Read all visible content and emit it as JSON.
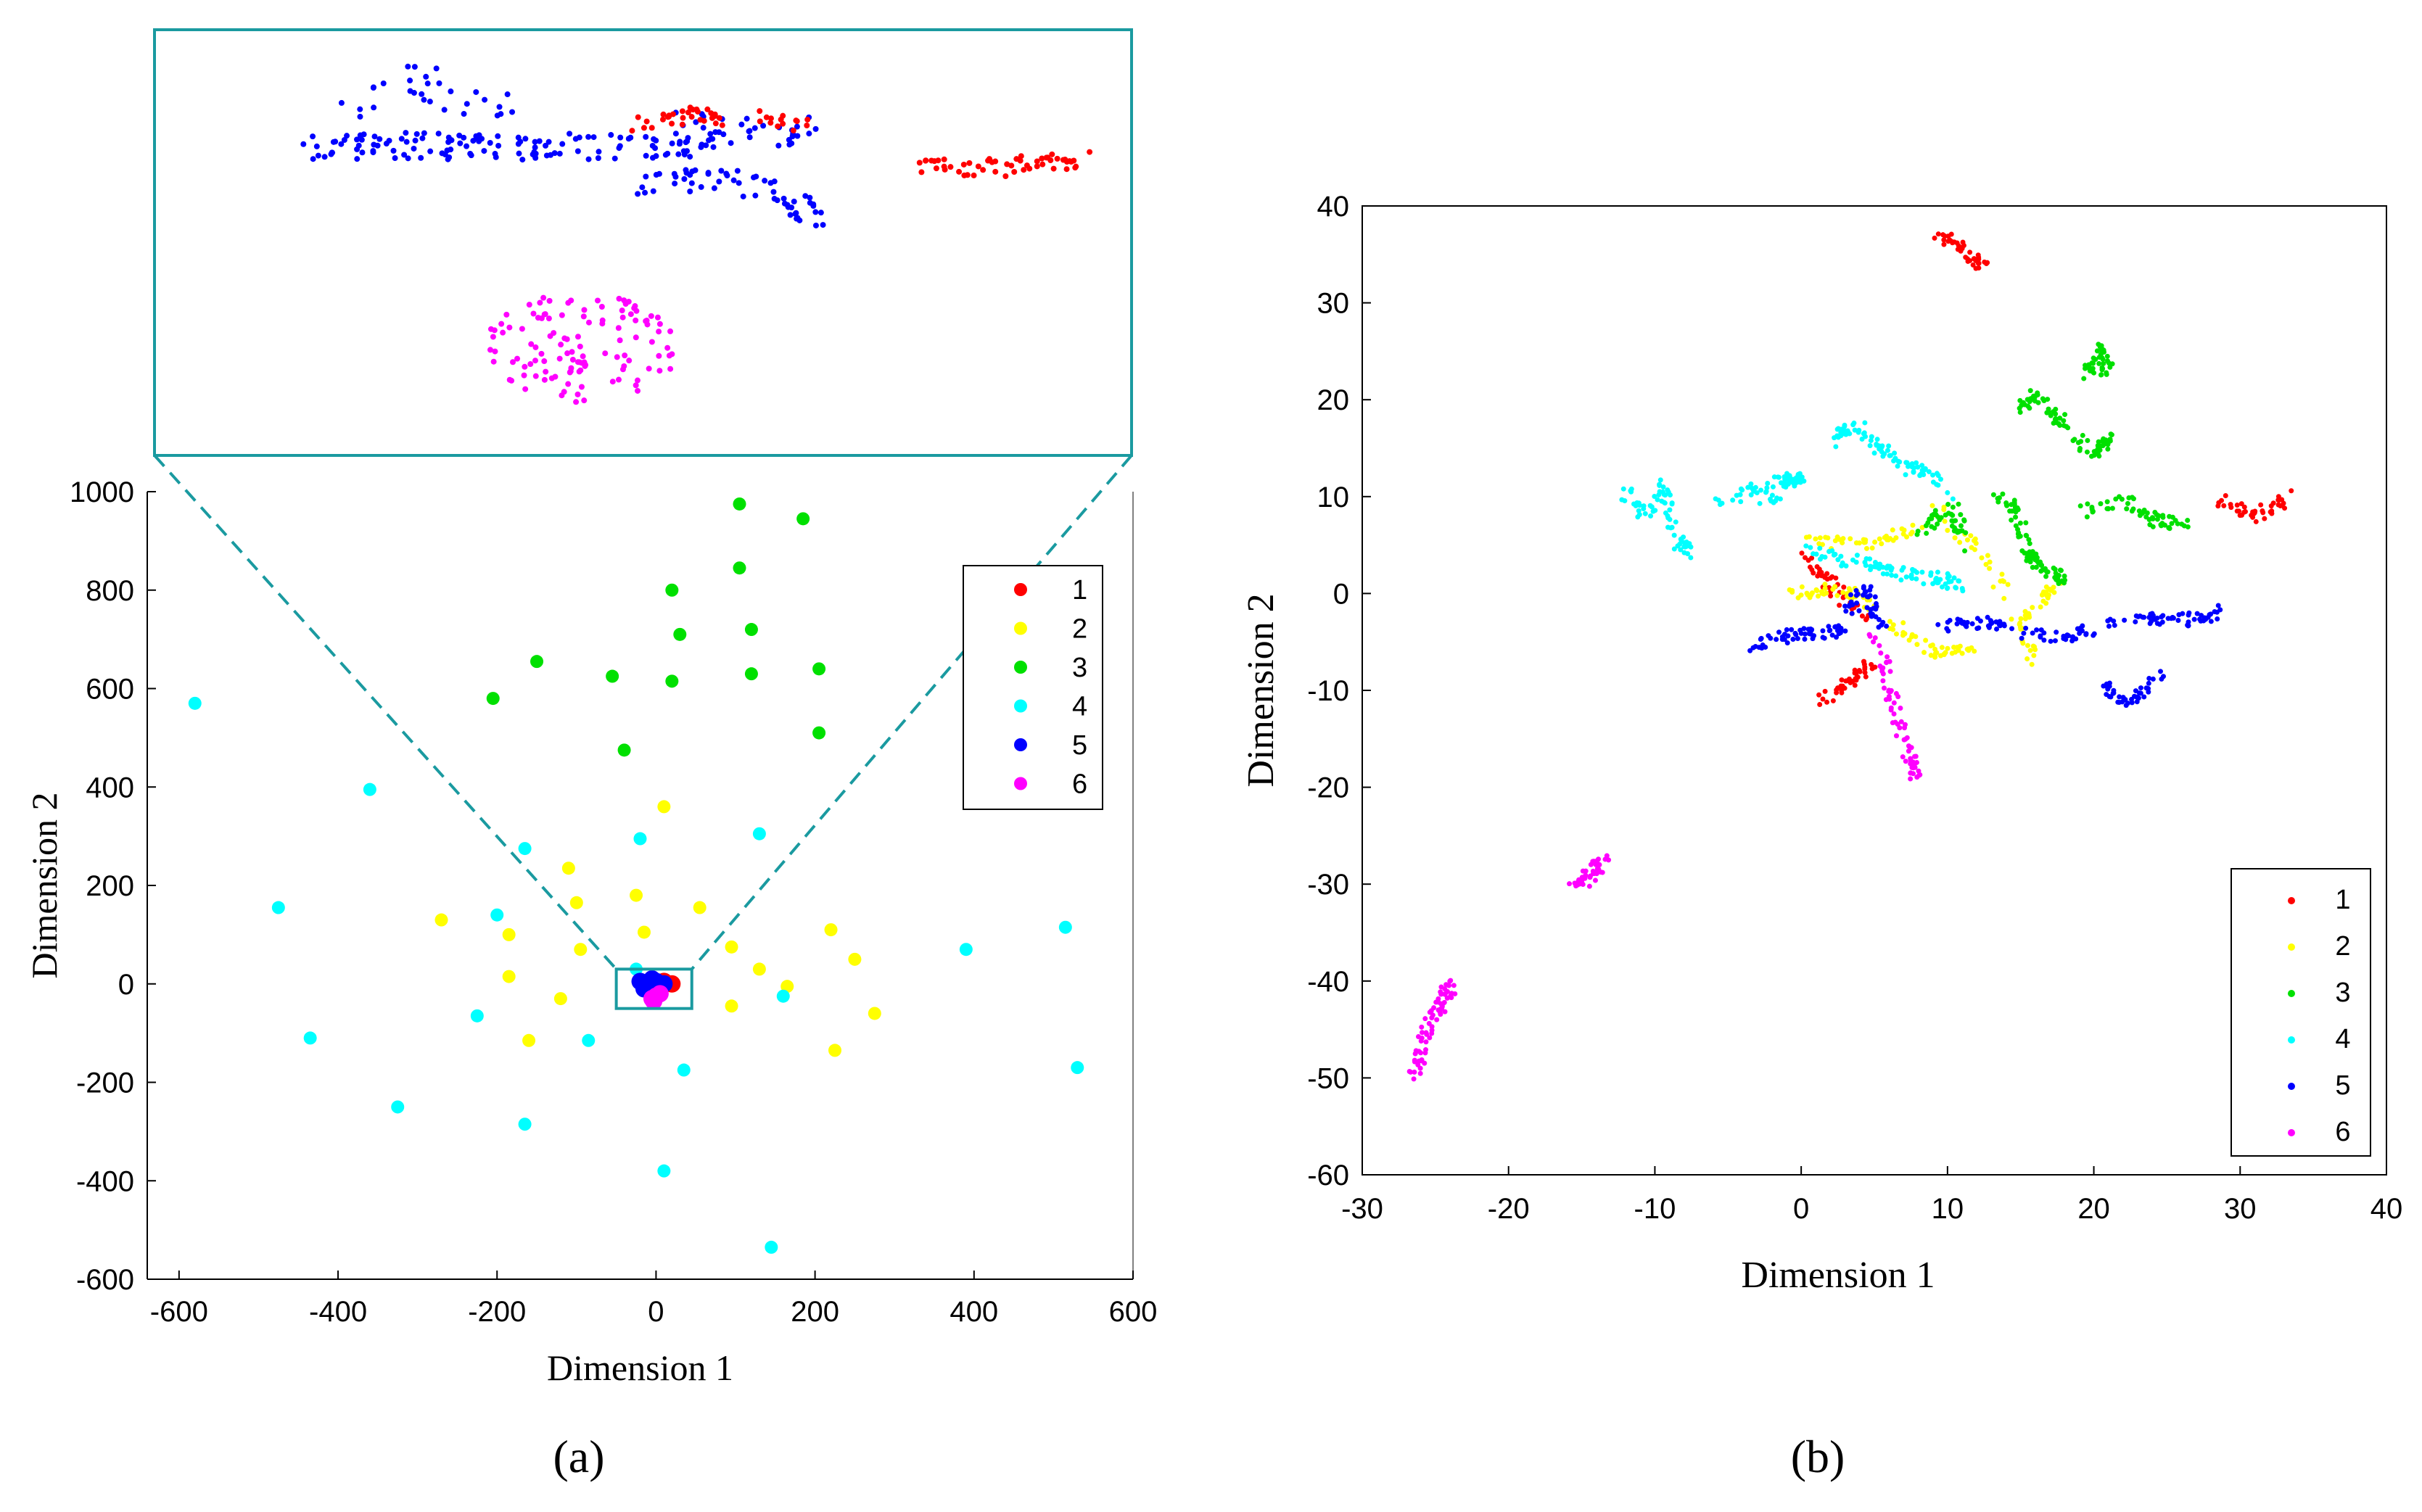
{
  "figure": {
    "panel_a_label": "(a)",
    "panel_b_label": "(b)"
  },
  "colors": {
    "1": "#ff0000",
    "2": "#ffff00",
    "3": "#00e000",
    "4": "#00ffff",
    "5": "#0000ff",
    "6": "#ff00ff",
    "inset_frame": "#1a9aa0"
  },
  "chart_data": [
    {
      "id": "a",
      "type": "scatter",
      "title": "",
      "xlabel": "Dimension 1",
      "ylabel": "Dimension 2",
      "xlim": [
        -640,
        600
      ],
      "ylim": [
        -600,
        1000
      ],
      "xticks": [
        -600,
        -400,
        -200,
        0,
        200,
        400,
        600
      ],
      "xtick_labels": [
        "-600",
        "-400",
        "-200",
        "0",
        "200",
        "400",
        "600"
      ],
      "yticks": [
        -600,
        -400,
        -200,
        0,
        200,
        400,
        600,
        800,
        1000
      ],
      "ytick_labels": [
        "-600",
        "-400",
        "-200",
        "0",
        "200",
        "400",
        "600",
        "800",
        "1000"
      ],
      "grid": false,
      "legend_position": "top-right",
      "legend": [
        "1",
        "2",
        "3",
        "4",
        "5",
        "6"
      ],
      "zoom_box": {
        "x": [
          -50,
          45
        ],
        "y": [
          -50,
          30
        ]
      },
      "series": [
        {
          "name": "1",
          "points": [
            [
              20,
              0
            ],
            [
              5,
              -5
            ],
            [
              10,
              5
            ]
          ]
        },
        {
          "name": "2",
          "points": [
            [
              10,
              360
            ],
            [
              -25,
              180
            ],
            [
              -110,
              235
            ],
            [
              -100,
              165
            ],
            [
              -185,
              100
            ],
            [
              -95,
              70
            ],
            [
              -270,
              130
            ],
            [
              -185,
              15
            ],
            [
              -120,
              -30
            ],
            [
              -160,
              -115
            ],
            [
              -15,
              105
            ],
            [
              55,
              155
            ],
            [
              95,
              75
            ],
            [
              130,
              30
            ],
            [
              165,
              -5
            ],
            [
              220,
              110
            ],
            [
              250,
              50
            ],
            [
              275,
              -60
            ],
            [
              95,
              -45
            ],
            [
              225,
              -135
            ]
          ]
        },
        {
          "name": "3",
          "points": [
            [
              105,
              975
            ],
            [
              185,
              945
            ],
            [
              105,
              845
            ],
            [
              20,
              800
            ],
            [
              30,
              710
            ],
            [
              120,
              720
            ],
            [
              -150,
              655
            ],
            [
              -55,
              625
            ],
            [
              20,
              615
            ],
            [
              120,
              630
            ],
            [
              205,
              640
            ],
            [
              -205,
              580
            ],
            [
              205,
              510
            ],
            [
              -40,
              475
            ]
          ]
        },
        {
          "name": "4",
          "points": [
            [
              -580,
              570
            ],
            [
              -475,
              155
            ],
            [
              -360,
              395
            ],
            [
              -435,
              -110
            ],
            [
              -325,
              -250
            ],
            [
              -165,
              275
            ],
            [
              -200,
              140
            ],
            [
              -225,
              -65
            ],
            [
              -165,
              -285
            ],
            [
              -85,
              -115
            ],
            [
              -20,
              295
            ],
            [
              -25,
              30
            ],
            [
              35,
              -175
            ],
            [
              10,
              -380
            ],
            [
              130,
              305
            ],
            [
              160,
              -25
            ],
            [
              145,
              -535
            ],
            [
              390,
              70
            ],
            [
              515,
              115
            ],
            [
              530,
              -170
            ]
          ]
        },
        {
          "name": "5",
          "points": [
            [
              -20,
              5
            ],
            [
              -5,
              10
            ],
            [
              5,
              -5
            ],
            [
              -15,
              -10
            ],
            [
              10,
              0
            ],
            [
              0,
              5
            ],
            [
              -10,
              0
            ]
          ]
        },
        {
          "name": "6",
          "points": [
            [
              0,
              -25
            ],
            [
              -5,
              -30
            ],
            [
              5,
              -20
            ],
            [
              -3,
              -35
            ]
          ]
        }
      ]
    },
    {
      "id": "a-zoom",
      "type": "scatter",
      "title": "",
      "note": "magnified view of the central box",
      "series": [
        "1",
        "5",
        "6"
      ]
    },
    {
      "id": "b",
      "type": "scatter",
      "title": "",
      "xlabel": "Dimension 1",
      "ylabel": "Dimension 2",
      "xlim": [
        -30,
        40
      ],
      "ylim": [
        -60,
        40
      ],
      "xticks": [
        -30,
        -20,
        -10,
        0,
        10,
        20,
        30,
        40
      ],
      "xtick_labels": [
        "-30",
        "-20",
        "-10",
        "0",
        "10",
        "20",
        "30",
        "40"
      ],
      "yticks": [
        -60,
        -50,
        -40,
        -30,
        -20,
        -10,
        0,
        10,
        20,
        30,
        40
      ],
      "ytick_labels": [
        "-60",
        "-50",
        "-40",
        "-30",
        "-20",
        "-10",
        "0",
        "10",
        "20",
        "30",
        "40"
      ],
      "grid": false,
      "legend_position": "bottom-right",
      "legend": [
        "1",
        "2",
        "3",
        "4",
        "5",
        "6"
      ],
      "clusters": [
        {
          "name": "1",
          "shape": "cluster",
          "blobs": [
            [
              [
                9.5,
                37.2
              ],
              [
                11.5,
                35.0
              ],
              [
                12.5,
                33.5
              ]
            ],
            [
              [
                0.0,
                4.0
              ],
              [
                2.0,
                1.0
              ],
              [
                4.5,
                -3.0
              ]
            ],
            [
              [
                1.5,
                -11.0
              ],
              [
                3.5,
                -9.0
              ],
              [
                5.0,
                -7.0
              ]
            ],
            [
              [
                28.5,
                9.7
              ],
              [
                31.0,
                8.0
              ],
              [
                33.8,
                10.5
              ]
            ]
          ]
        },
        {
          "name": "2",
          "shape": "cluster",
          "blobs": [
            [
              [
                0.5,
                5.5
              ],
              [
                4.0,
                5.0
              ],
              [
                8.0,
                6.5
              ]
            ],
            [
              [
                -0.5,
                0.0
              ],
              [
                2.5,
                0.5
              ],
              [
                5.0,
                -1.0
              ]
            ],
            [
              [
                6.0,
                -3.0
              ],
              [
                9.0,
                -6.0
              ],
              [
                12.0,
                -5.5
              ]
            ],
            [
              [
                9.0,
                9.0
              ],
              [
                13.0,
                3.0
              ],
              [
                16.0,
                -7.0
              ]
            ],
            [
              [
                17.5,
                1.0
              ],
              [
                15.0,
                -3.0
              ]
            ]
          ]
        },
        {
          "name": "3",
          "shape": "cluster",
          "blobs": [
            [
              [
                14.5,
                18.5
              ],
              [
                16.0,
                20.5
              ],
              [
                17.5,
                18.0
              ],
              [
                19.5,
                15.0
              ]
            ],
            [
              [
                19.5,
                22.5
              ],
              [
                20.5,
                25.5
              ],
              [
                21.0,
                22.0
              ]
            ],
            [
              [
                20.0,
                14.5
              ],
              [
                21.0,
                16.0
              ]
            ],
            [
              [
                19.0,
                8.5
              ],
              [
                22.5,
                9.5
              ],
              [
                24.5,
                7.5
              ],
              [
                26.5,
                7.0
              ]
            ],
            [
              [
                13.0,
                10.0
              ],
              [
                14.5,
                9.0
              ],
              [
                15.5,
                4.5
              ],
              [
                16.0,
                3.0
              ]
            ],
            [
              [
                8.0,
                6.5
              ],
              [
                10.5,
                9.0
              ],
              [
                11.0,
                5.0
              ]
            ],
            [
              [
                16.5,
                2.5
              ],
              [
                18.0,
                1.5
              ]
            ]
          ]
        },
        {
          "name": "4",
          "shape": "cluster",
          "blobs": [
            [
              [
                -12.0,
                10.5
              ],
              [
                -10.5,
                8.0
              ],
              [
                -9.5,
                11.5
              ],
              [
                -8.5,
                5.5
              ],
              [
                -7.5,
                4.0
              ]
            ],
            [
              [
                -6.0,
                9.0
              ],
              [
                -4.0,
                10.5
              ],
              [
                -1.5,
                11.5
              ],
              [
                0.0,
                12.0
              ],
              [
                -2.5,
                9.5
              ]
            ],
            [
              [
                2.0,
                15.5
              ],
              [
                3.5,
                17.5
              ],
              [
                5.5,
                15.0
              ],
              [
                7.0,
                13.0
              ],
              [
                9.0,
                12.5
              ],
              [
                10.0,
                10.0
              ]
            ],
            [
              [
                0.5,
                4.5
              ],
              [
                3.0,
                3.5
              ],
              [
                5.0,
                3.0
              ],
              [
                7.0,
                2.0
              ],
              [
                9.5,
                1.5
              ],
              [
                11.0,
                0.8
              ]
            ]
          ]
        },
        {
          "name": "5",
          "shape": "cluster",
          "blobs": [
            [
              [
                -3.5,
                -5.5
              ],
              [
                -1.5,
                -4.5
              ],
              [
                1.0,
                -4.0
              ],
              [
                3.0,
                -4.0
              ]
            ],
            [
              [
                3.0,
                -2.0
              ],
              [
                4.5,
                0.5
              ],
              [
                5.5,
                -3.5
              ]
            ],
            [
              [
                9.5,
                -3.5
              ],
              [
                12.0,
                -3.0
              ],
              [
                15.0,
                -4.0
              ],
              [
                18.0,
                -4.5
              ],
              [
                20.0,
                -3.5
              ]
            ],
            [
              [
                21.0,
                -3.0
              ],
              [
                24.0,
                -2.5
              ],
              [
                26.5,
                -2.8
              ],
              [
                28.5,
                -1.8
              ]
            ],
            [
              [
                20.5,
                -9.5
              ],
              [
                22.5,
                -11.5
              ],
              [
                24.5,
                -8.5
              ]
            ]
          ]
        },
        {
          "name": "6",
          "shape": "cluster",
          "blobs": [
            [
              [
                5.0,
                -4.5
              ],
              [
                5.8,
                -8.0
              ],
              [
                6.5,
                -13.0
              ],
              [
                7.5,
                -17.0
              ],
              [
                7.8,
                -19.0
              ]
            ],
            [
              [
                -15.5,
                -30.5
              ],
              [
                -14.5,
                -29.0
              ],
              [
                -13.5,
                -27.5
              ]
            ],
            [
              [
                -26.5,
                -50.0
              ],
              [
                -26.0,
                -47.0
              ],
              [
                -25.5,
                -44.5
              ],
              [
                -24.5,
                -42.0
              ],
              [
                -24.0,
                -40.5
              ]
            ]
          ]
        }
      ]
    }
  ]
}
